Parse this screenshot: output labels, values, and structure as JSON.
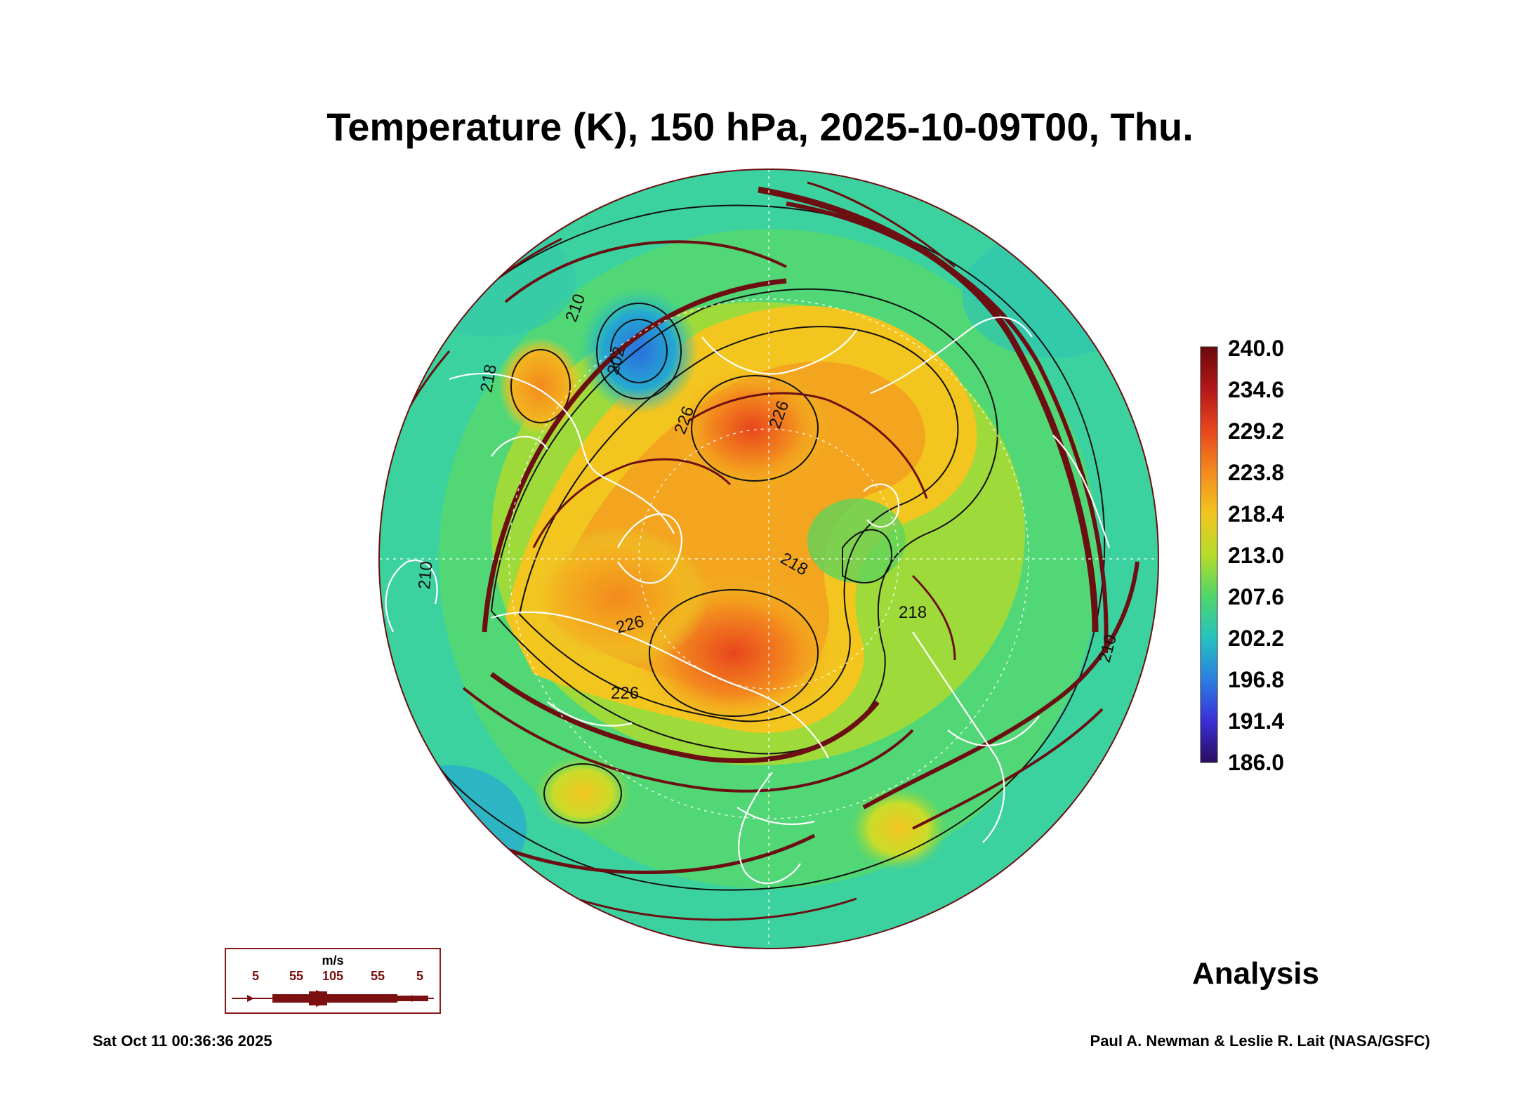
{
  "title": "Temperature (K), 150 hPa, 2025-10-09T00, Thu.",
  "colorbar": {
    "labels": [
      "240.0",
      "234.6",
      "229.2",
      "223.8",
      "218.4",
      "213.0",
      "207.6",
      "202.2",
      "196.8",
      "191.4",
      "186.0"
    ],
    "colors": [
      "#6b0a0a",
      "#b3161a",
      "#e8461c",
      "#f38a1e",
      "#f3c51f",
      "#b6dc2a",
      "#4fd66a",
      "#25c3c0",
      "#2a7fe0",
      "#3b2fd8",
      "#2a0c5e"
    ]
  },
  "contour_labels": [
    "202",
    "210",
    "210",
    "210",
    "218",
    "218",
    "218",
    "226",
    "226",
    "226",
    "226"
  ],
  "wind_legend": {
    "unit": "m/s",
    "values": [
      "5",
      "55",
      "105",
      "55",
      "5"
    ]
  },
  "analysis_label": "Analysis",
  "timestamp": "Sat Oct 11 00:36:36 2025",
  "credit": "Paul A. Newman & Leslie R. Lait (NASA/GSFC)"
}
